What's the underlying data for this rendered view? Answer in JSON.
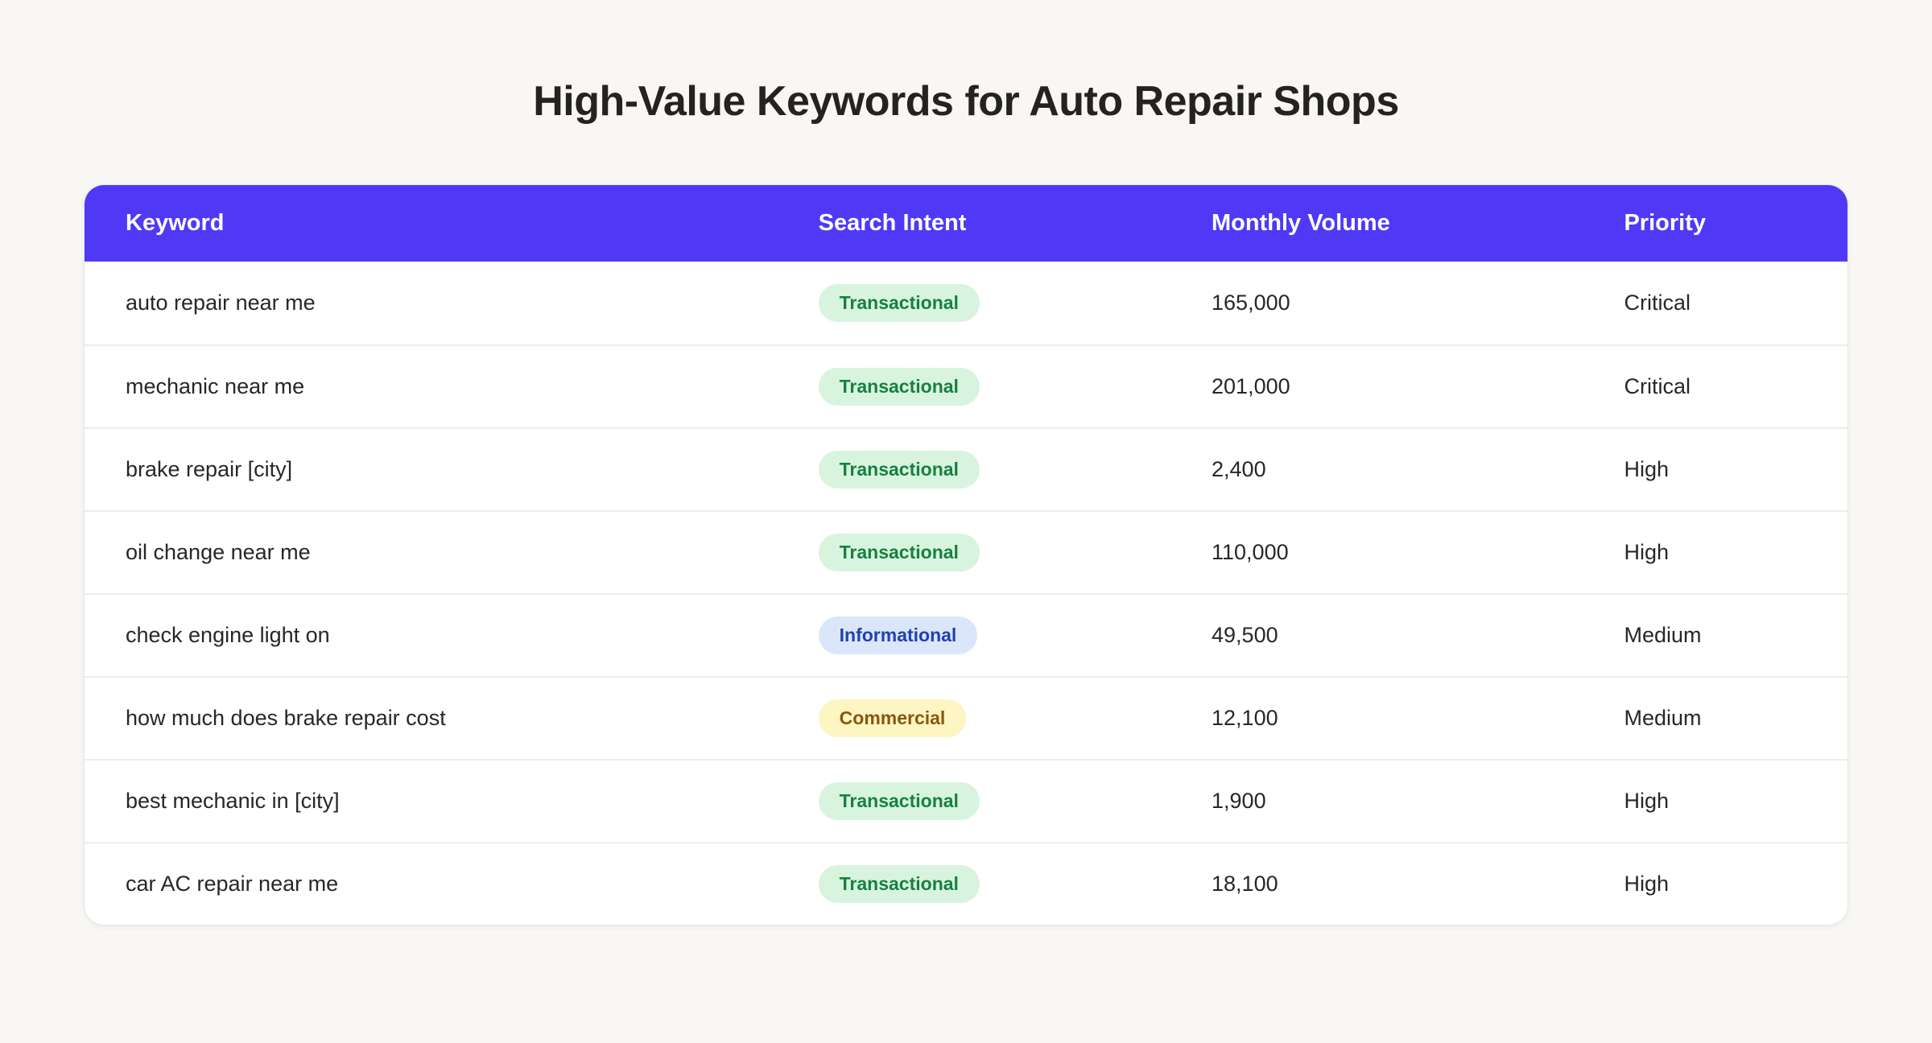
{
  "page": {
    "title": "High-Value Keywords for Auto Repair Shops",
    "background_color": "#f8f7f4"
  },
  "chart_data": {
    "type": "table",
    "title": "High-Value Keywords for Auto Repair Shops",
    "header_bg_color": "#4f39f6",
    "header_text_color": "#ffffff",
    "columns": [
      "Keyword",
      "Search Intent",
      "Monthly Volume",
      "Priority"
    ],
    "intent_badge_colors": {
      "Transactional": {
        "background": "#d8f4df",
        "text": "#17813f"
      },
      "Informational": {
        "background": "#dbe6fb",
        "text": "#1e42af"
      },
      "Commercial": {
        "background": "#fdf5c2",
        "text": "#8a560f"
      }
    },
    "rows": [
      {
        "keyword": "auto repair near me",
        "intent": "Transactional",
        "volume": "165,000",
        "priority": "Critical"
      },
      {
        "keyword": "mechanic near me",
        "intent": "Transactional",
        "volume": "201,000",
        "priority": "Critical"
      },
      {
        "keyword": "brake repair [city]",
        "intent": "Transactional",
        "volume": "2,400",
        "priority": "High"
      },
      {
        "keyword": "oil change near me",
        "intent": "Transactional",
        "volume": "110,000",
        "priority": "High"
      },
      {
        "keyword": "check engine light on",
        "intent": "Informational",
        "volume": "49,500",
        "priority": "Medium"
      },
      {
        "keyword": "how much does brake repair cost",
        "intent": "Commercial",
        "volume": "12,100",
        "priority": "Medium"
      },
      {
        "keyword": "best mechanic in [city]",
        "intent": "Transactional",
        "volume": "1,900",
        "priority": "High"
      },
      {
        "keyword": "car AC repair near me",
        "intent": "Transactional",
        "volume": "18,100",
        "priority": "High"
      }
    ]
  }
}
